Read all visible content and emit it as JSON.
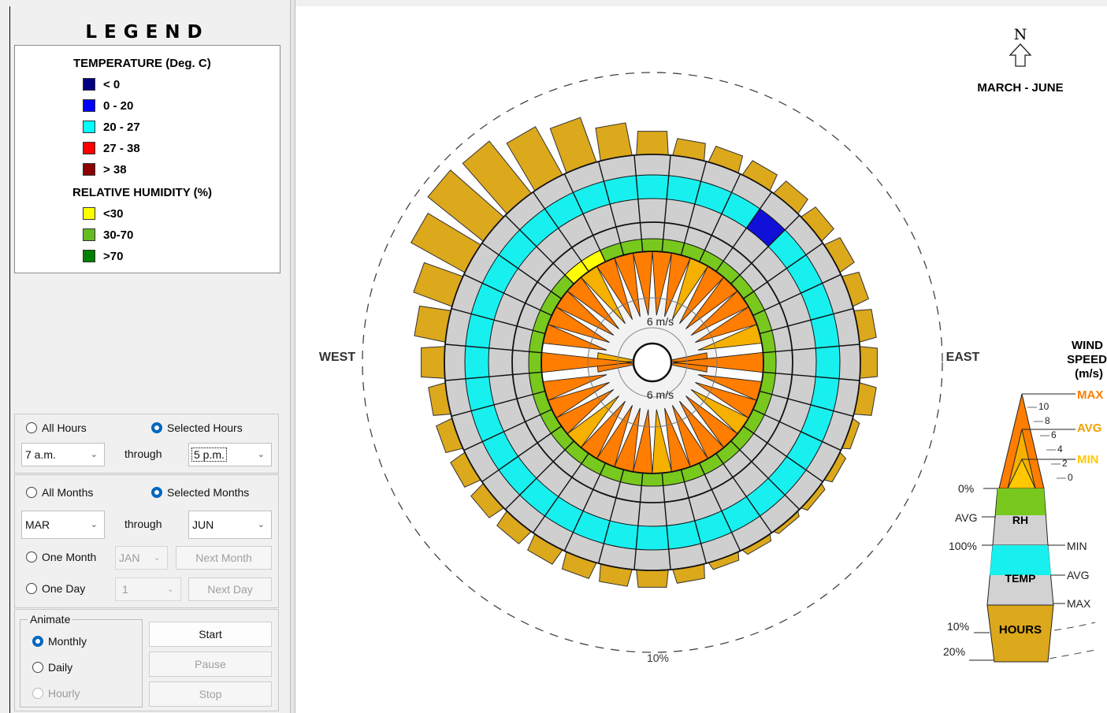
{
  "legend": {
    "title": "LEGEND",
    "temp_heading": "TEMPERATURE (Deg. C)",
    "temp_items": [
      {
        "label": "< 0",
        "color": "#000080"
      },
      {
        "label": "0  -  20",
        "color": "#0000ff"
      },
      {
        "label": "20  -  27",
        "color": "#00ffff"
      },
      {
        "label": "27  -  38",
        "color": "#ff0000"
      },
      {
        "label": "> 38",
        "color": "#8b0000"
      }
    ],
    "rh_heading": "RELATIVE HUMIDITY (%)",
    "rh_items": [
      {
        "label": "<30",
        "color": "#ffff00"
      },
      {
        "label": "30-70",
        "color": "#66bb22"
      },
      {
        "label": ">70",
        "color": "#008000"
      }
    ]
  },
  "hours": {
    "all_label": "All Hours",
    "selected_label": "Selected Hours",
    "from": "7 a.m.",
    "through": "through",
    "to": "5 p.m."
  },
  "months": {
    "all_label": "All Months",
    "selected_label": "Selected Months",
    "from": "MAR",
    "through": "through",
    "to": "JUN",
    "one_month_label": "One Month",
    "one_month_value": "JAN",
    "next_month": "Next Month",
    "one_day_label": "One Day",
    "one_day_value": "1",
    "next_day": "Next Day"
  },
  "animate": {
    "group_label": "Animate",
    "monthly": "Monthly",
    "daily": "Daily",
    "hourly": "Hourly",
    "start": "Start",
    "pause": "Pause",
    "stop": "Stop"
  },
  "wheel": {
    "north_letter": "N",
    "period": "MARCH - JUNE",
    "west": "WEST",
    "east": "EAST",
    "speed_label_top": "6 m/s",
    "speed_label_bottom": "6 m/s",
    "outer_pct": "10%",
    "sector_count": 36
  },
  "key": {
    "title_line1": "WIND",
    "title_line2": "SPEED",
    "title_line3": "(m/s)",
    "max": "MAX",
    "avg": "AVG",
    "min": "MIN",
    "ticks": [
      "10",
      "8",
      "6",
      "4",
      "2",
      "0"
    ],
    "rh_label": "RH",
    "temp_label": "TEMP",
    "hours_label": "HOURS",
    "pct0": "0%",
    "avg_left": "AVG",
    "pct100": "100%",
    "min_right": "MIN",
    "avg_right": "AVG",
    "max_right": "MAX",
    "pct10": "10%",
    "pct20": "20%"
  },
  "colors": {
    "hours_fill": "#dca81c",
    "temp_cyan": "#18f0f0",
    "temp_blue": "#1010d8",
    "ring_gray": "#cfcfcf",
    "rh_green": "#78c81e",
    "rh_yellow": "#ffff00",
    "wind_orange": "#ff7d00",
    "wind_gold": "#f5b000",
    "avg_orange": "#f0a000",
    "min_yellow": "#ffc800"
  }
}
